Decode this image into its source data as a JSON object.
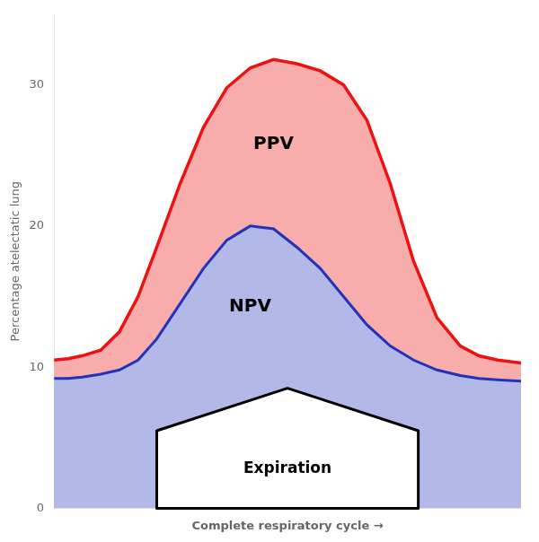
{
  "chart_data": {
    "type": "area",
    "xlabel": "Complete respiratory cycle →",
    "ylabel": "Percentage atelectatic lung",
    "x": [
      0.0,
      0.03,
      0.06,
      0.1,
      0.14,
      0.18,
      0.22,
      0.27,
      0.32,
      0.37,
      0.42,
      0.47,
      0.52,
      0.57,
      0.62,
      0.67,
      0.72,
      0.77,
      0.82,
      0.87,
      0.91,
      0.95,
      1.0
    ],
    "series": [
      {
        "name": "PPV",
        "color": "#ee1111",
        "values": [
          10.5,
          10.6,
          10.8,
          11.2,
          12.5,
          15.0,
          18.5,
          23.0,
          27.0,
          29.8,
          31.2,
          31.8,
          31.5,
          31.0,
          30.0,
          27.5,
          23.0,
          17.5,
          13.5,
          11.5,
          10.8,
          10.5,
          10.3
        ]
      },
      {
        "name": "NPV",
        "color": "#2233bb",
        "values": [
          9.2,
          9.2,
          9.3,
          9.5,
          9.8,
          10.5,
          12.0,
          14.5,
          17.0,
          19.0,
          20.0,
          19.8,
          18.5,
          17.0,
          15.0,
          13.0,
          11.5,
          10.5,
          9.8,
          9.4,
          9.2,
          9.1,
          9.0
        ]
      }
    ],
    "xlim": [
      0,
      1
    ],
    "xticks": [],
    "ylim": [
      0,
      35
    ],
    "yticks": [
      0,
      10,
      20,
      30
    ],
    "grid": false,
    "tick_labels": "y",
    "annotations": [
      "Expiration"
    ]
  }
}
